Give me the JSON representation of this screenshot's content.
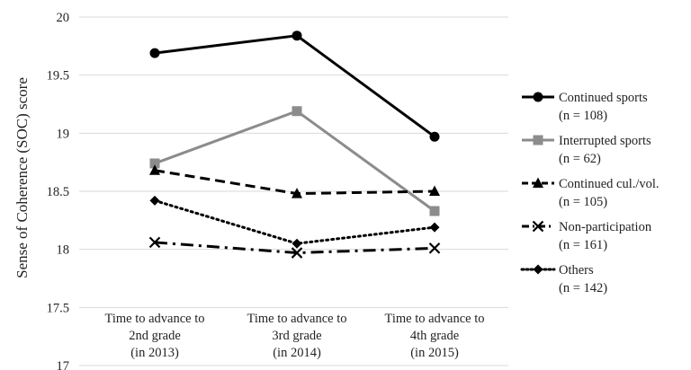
{
  "chart_data": {
    "type": "line",
    "ylabel": "Sense of Coherence (SOC) score",
    "ylim": [
      17,
      20
    ],
    "yticks": [
      "17",
      "17.5",
      "18",
      "18.5",
      "19",
      "19.5",
      "20"
    ],
    "ytick_values": [
      17,
      17.5,
      18,
      18.5,
      19,
      19.5,
      20
    ],
    "grid": "horizontal",
    "legend_position": "right",
    "categories": [
      [
        "Time to advance to",
        "2nd grade",
        "(in 2013)"
      ],
      [
        "Time to advance to",
        "3rd grade",
        "(in 2014)"
      ],
      [
        "Time to advance to",
        "4th grade",
        "(in 2015)"
      ]
    ],
    "series": [
      {
        "name": "Continued sports",
        "n_label": "(n = 108)",
        "values": [
          19.69,
          19.84,
          18.97
        ],
        "color": "#000000",
        "dash": "solid",
        "marker": "circle"
      },
      {
        "name": "Interrupted sports",
        "n_label": "(n = 62)",
        "values": [
          18.74,
          19.19,
          18.33
        ],
        "color": "#8c8c8c",
        "dash": "solid",
        "marker": "square"
      },
      {
        "name": "Continued cul./vol.",
        "n_label": "(n = 105)",
        "values": [
          18.68,
          18.48,
          18.5
        ],
        "color": "#000000",
        "dash": "dashed",
        "marker": "triangle"
      },
      {
        "name": "Non-participation",
        "n_label": "(n = 161)",
        "values": [
          18.06,
          17.97,
          18.01
        ],
        "color": "#000000",
        "dash": "dashdot",
        "marker": "x"
      },
      {
        "name": "Others",
        "n_label": "(n = 142)",
        "values": [
          18.42,
          18.05,
          18.19
        ],
        "color": "#000000",
        "dash": "dotted",
        "marker": "diamond"
      }
    ]
  }
}
